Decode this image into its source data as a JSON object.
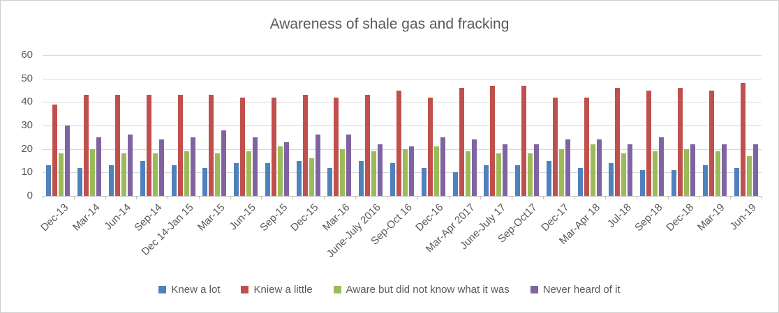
{
  "chart_data": {
    "type": "bar",
    "title": "Awareness of shale gas and fracking",
    "categories": [
      "Dec-13",
      "Mar-14",
      "Jun-14",
      "Sep-14",
      "Dec 14-Jan 15",
      "Mar-15",
      "Jun-15",
      "Sep-15",
      "Dec-15",
      "Mar-16",
      "June-July 2016",
      "Sep-Oct 16",
      "Dec-16",
      "Mar-Apr 2017",
      "June-July 17",
      "Sep-Oct17",
      "Dec-17",
      "Mar-Apr 18",
      "Jul-18",
      "Sep-18",
      "Dec-18",
      "Mar-19",
      "Jun-19"
    ],
    "series": [
      {
        "name": "Knew a lot",
        "color": "#4f81bd",
        "values": [
          13,
          12,
          13,
          15,
          13,
          12,
          14,
          14,
          15,
          12,
          15,
          14,
          12,
          10,
          13,
          13,
          15,
          12,
          14,
          11,
          11,
          13,
          12
        ]
      },
      {
        "name": "Kniew a little",
        "color": "#c0504d",
        "values": [
          39,
          43,
          43,
          43,
          43,
          43,
          42,
          42,
          43,
          42,
          43,
          45,
          42,
          46,
          47,
          47,
          42,
          42,
          46,
          45,
          46,
          45,
          48
        ]
      },
      {
        "name": "Aware but did not know what it was",
        "color": "#9bbb59",
        "values": [
          18,
          20,
          18,
          18,
          19,
          18,
          19,
          21,
          16,
          20,
          19,
          20,
          21,
          19,
          18,
          18,
          20,
          22,
          18,
          19,
          20,
          19,
          17
        ]
      },
      {
        "name": "Never heard of it",
        "color": "#8064a2",
        "values": [
          30,
          25,
          26,
          24,
          25,
          28,
          25,
          23,
          26,
          26,
          22,
          21,
          25,
          24,
          22,
          22,
          24,
          24,
          22,
          25,
          22,
          22,
          22
        ]
      }
    ],
    "ylim": [
      0,
      60
    ],
    "yticks": [
      0,
      10,
      20,
      30,
      40,
      50,
      60
    ],
    "grid": true,
    "legend_position": "bottom",
    "text_color": "#595959",
    "gridline_color": "#d9d9d9"
  }
}
